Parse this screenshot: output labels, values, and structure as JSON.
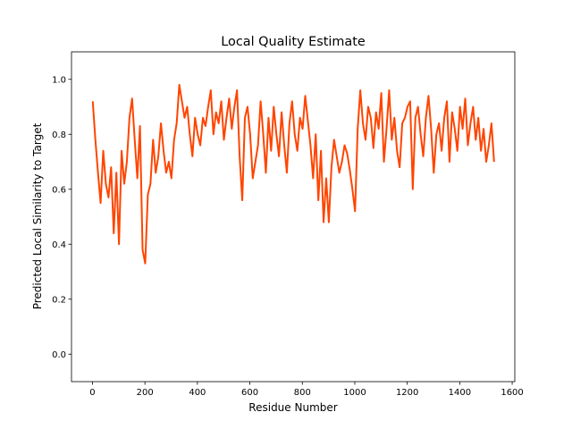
{
  "chart_data": {
    "type": "line",
    "title": "Local Quality Estimate",
    "xlabel": "Residue Number",
    "ylabel": "Predicted Local Similarity to Target",
    "xlim": [
      -80,
      1610
    ],
    "ylim": [
      -0.1,
      1.1
    ],
    "x_ticks": [
      0,
      200,
      400,
      600,
      800,
      1000,
      1200,
      1400,
      1600
    ],
    "y_ticks": [
      0.0,
      0.2,
      0.4,
      0.6,
      0.8,
      1.0
    ],
    "x_tick_labels": [
      "0",
      "200",
      "400",
      "600",
      "800",
      "1000",
      "1200",
      "1400",
      "1600"
    ],
    "y_tick_labels": [
      "0.0",
      "0.2",
      "0.4",
      "0.6",
      "0.8",
      "1.0"
    ],
    "grid": false,
    "line_color": "#ff4500",
    "series": [
      {
        "x_start": 1,
        "x_step": 10,
        "values": [
          0.92,
          0.78,
          0.66,
          0.55,
          0.74,
          0.62,
          0.57,
          0.68,
          0.44,
          0.66,
          0.4,
          0.74,
          0.62,
          0.7,
          0.86,
          0.93,
          0.78,
          0.64,
          0.83,
          0.38,
          0.33,
          0.58,
          0.62,
          0.78,
          0.66,
          0.72,
          0.84,
          0.74,
          0.66,
          0.7,
          0.64,
          0.78,
          0.84,
          0.98,
          0.92,
          0.86,
          0.9,
          0.8,
          0.72,
          0.86,
          0.8,
          0.76,
          0.86,
          0.83,
          0.9,
          0.96,
          0.8,
          0.88,
          0.84,
          0.92,
          0.78,
          0.86,
          0.93,
          0.82,
          0.9,
          0.96,
          0.72,
          0.56,
          0.86,
          0.9,
          0.8,
          0.64,
          0.7,
          0.76,
          0.92,
          0.8,
          0.66,
          0.86,
          0.74,
          0.9,
          0.8,
          0.72,
          0.88,
          0.76,
          0.66,
          0.84,
          0.92,
          0.8,
          0.74,
          0.86,
          0.82,
          0.94,
          0.85,
          0.76,
          0.64,
          0.8,
          0.56,
          0.74,
          0.48,
          0.64,
          0.48,
          0.68,
          0.78,
          0.72,
          0.66,
          0.7,
          0.76,
          0.73,
          0.67,
          0.6,
          0.52,
          0.82,
          0.96,
          0.84,
          0.78,
          0.9,
          0.86,
          0.75,
          0.88,
          0.82,
          0.95,
          0.7,
          0.82,
          0.96,
          0.78,
          0.86,
          0.74,
          0.68,
          0.84,
          0.86,
          0.9,
          0.92,
          0.6,
          0.86,
          0.9,
          0.8,
          0.72,
          0.86,
          0.94,
          0.82,
          0.66,
          0.8,
          0.84,
          0.74,
          0.86,
          0.92,
          0.7,
          0.88,
          0.82,
          0.74,
          0.9,
          0.82,
          0.93,
          0.76,
          0.84,
          0.9,
          0.78,
          0.86,
          0.74,
          0.82,
          0.7,
          0.76,
          0.84,
          0.7
        ]
      }
    ]
  }
}
